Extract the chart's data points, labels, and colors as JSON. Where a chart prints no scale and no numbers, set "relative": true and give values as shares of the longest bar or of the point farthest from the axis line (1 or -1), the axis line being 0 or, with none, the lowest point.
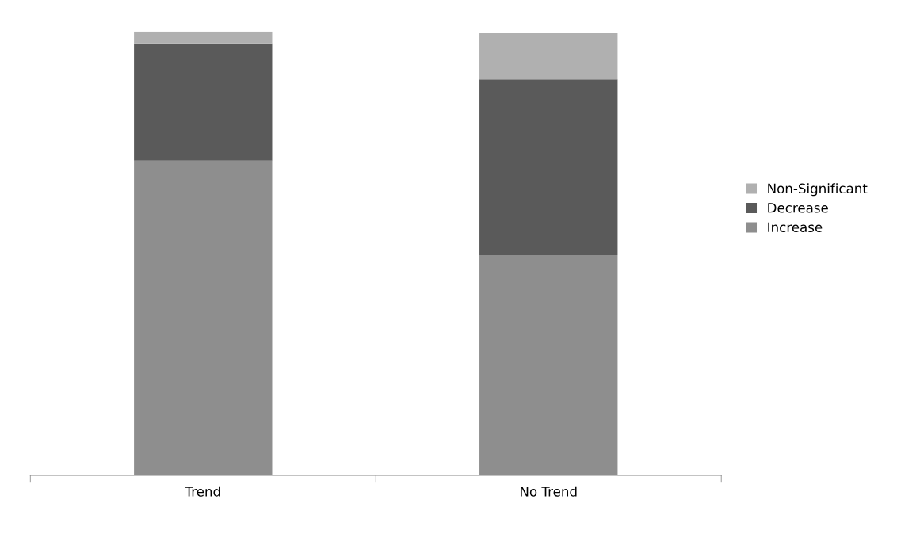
{
  "chart_data": {
    "type": "bar",
    "stacked": true,
    "relative": true,
    "legend": "right",
    "grid": false,
    "categories": [
      "Trend",
      "No Trend"
    ],
    "series": [
      {
        "name": "Increase",
        "color": "#8e8e8e",
        "values": [
          0.709,
          0.496
        ]
      },
      {
        "name": "Decrease",
        "color": "#5a5a5a",
        "values": [
          0.264,
          0.396
        ]
      },
      {
        "name": "Non-Significant",
        "color": "#b0b0b0",
        "values": [
          0.027,
          0.104
        ]
      }
    ]
  }
}
